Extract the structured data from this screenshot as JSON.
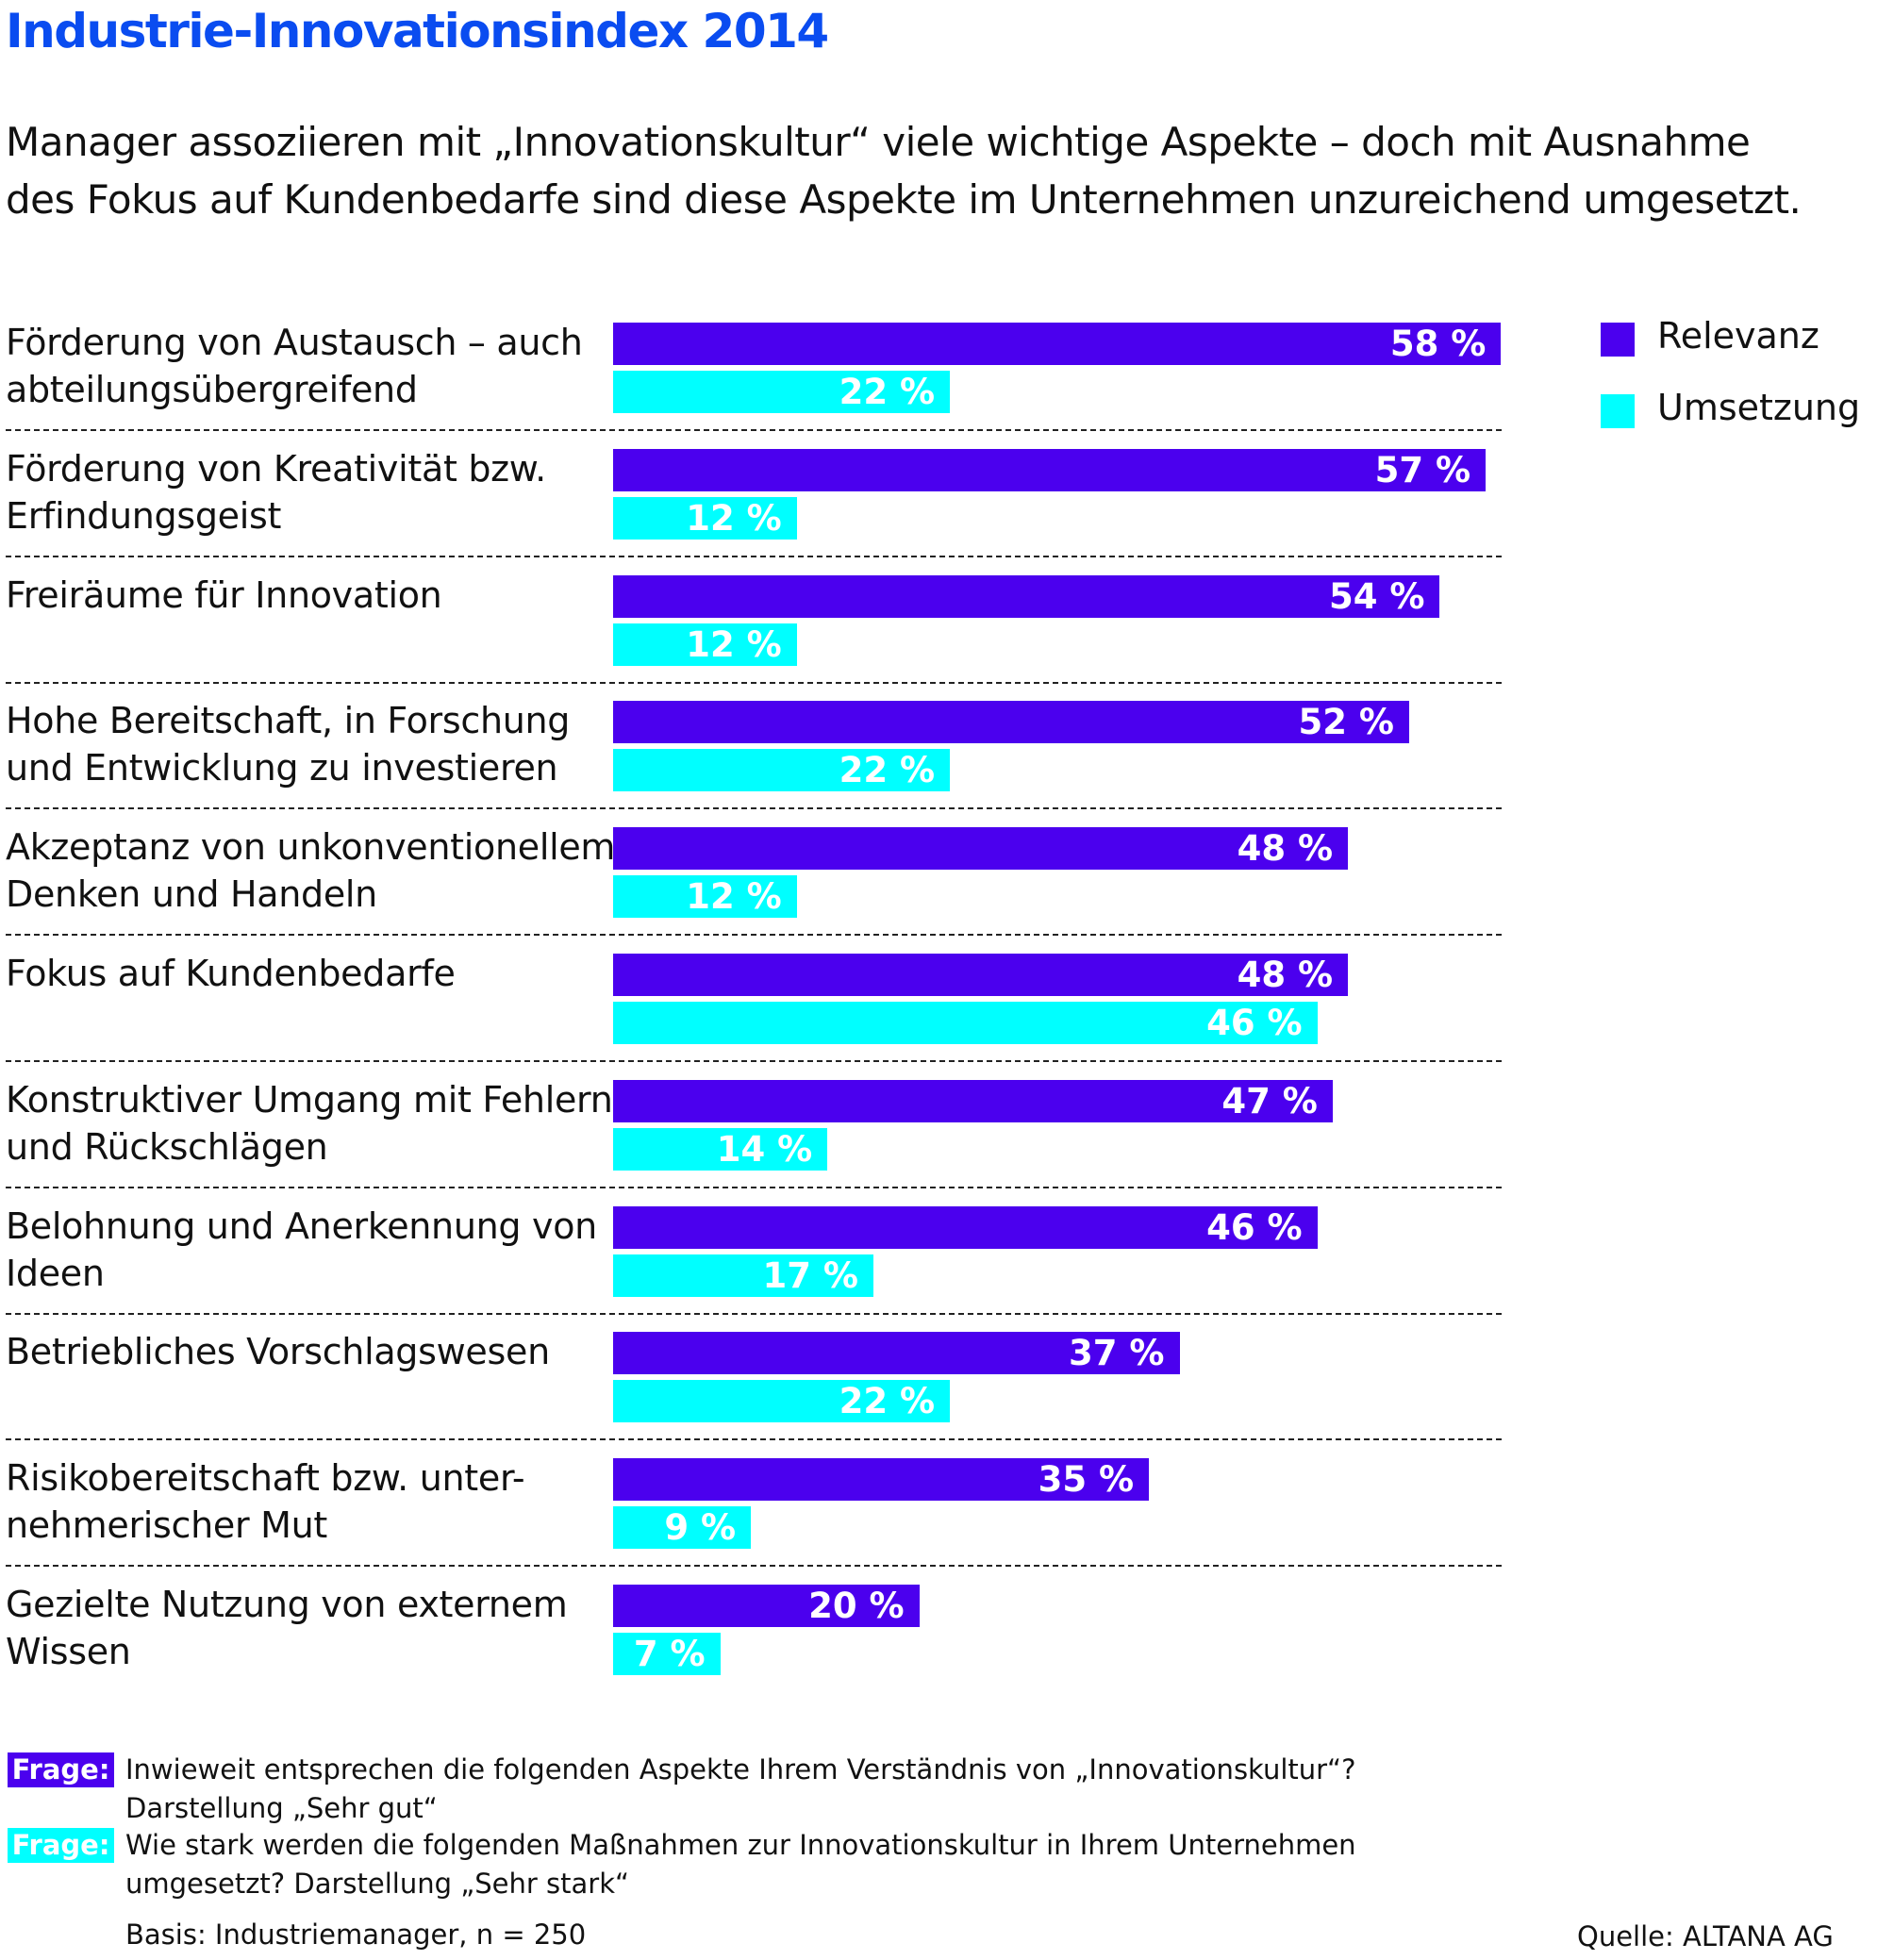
{
  "title": "Industrie-Innovationsindex 2014",
  "subtitle": [
    "Manager assoziieren mit „Innovationskultur“ viele wichtige Aspekte – doch mit Ausnahme",
    "des Fokus auf Kundenbedarfe sind diese Aspekte im Unternehmen unzureichend umgesetzt."
  ],
  "colors": {
    "relevanz": "#4B00EE",
    "umsetzung": "#00FFFF",
    "title": "#0A4CF0"
  },
  "legend": [
    {
      "label": "Relevanz",
      "color": "#4B00EE"
    },
    {
      "label": "Umsetzung",
      "color": "#00FFFF"
    }
  ],
  "chart_data": {
    "type": "bar",
    "orientation": "horizontal",
    "title": "Industrie-Innovationsindex 2014",
    "categories": [
      [
        "Förderung von Austausch – auch",
        "abteilungsübergreifend"
      ],
      [
        "Förderung von Kreativität bzw.",
        "Erfindungsgeist"
      ],
      [
        "Freiräume für Innovation"
      ],
      [
        "Hohe Bereitschaft, in Forschung",
        "und Entwicklung zu investieren"
      ],
      [
        "Akzeptanz von unkonventionellem",
        "Denken und Handeln"
      ],
      [
        "Fokus auf Kundenbedarfe"
      ],
      [
        "Konstruktiver Umgang mit Fehlern",
        "und Rückschlägen"
      ],
      [
        "Belohnung und Anerkennung von",
        "Ideen"
      ],
      [
        "Betriebliches Vorschlagswesen"
      ],
      [
        "Risikobereitschaft bzw. unter-",
        "nehmerischer Mut"
      ],
      [
        "Gezielte Nutzung von externem",
        "Wissen"
      ]
    ],
    "series": [
      {
        "name": "Relevanz",
        "color": "#4B00EE",
        "values": [
          58,
          57,
          54,
          52,
          48,
          48,
          47,
          46,
          37,
          35,
          20
        ]
      },
      {
        "name": "Umsetzung",
        "color": "#00FFFF",
        "values": [
          22,
          12,
          12,
          22,
          12,
          46,
          14,
          17,
          22,
          9,
          7
        ]
      }
    ],
    "unit": "%",
    "xlim": [
      0,
      60
    ],
    "legend_position": "top-right",
    "grid": false,
    "xlabel": "",
    "ylabel": ""
  },
  "footer": {
    "questions": [
      {
        "badge": "Frage:",
        "color": "#4B00EE",
        "lines": [
          "Inwieweit entsprechen die folgenden Aspekte Ihrem Verständnis von „Innovationskultur“?",
          "Darstellung „Sehr gut“"
        ]
      },
      {
        "badge": "Frage:",
        "color": "#00FFFF",
        "lines": [
          "Wie stark werden die folgenden Maßnahmen zur Innovationskultur in Ihrem Unternehmen",
          "umgesetzt? Darstellung „Sehr stark“"
        ]
      }
    ],
    "basis": "Basis: Industriemanager, n = 250",
    "source": "Quelle: ALTANA AG"
  }
}
